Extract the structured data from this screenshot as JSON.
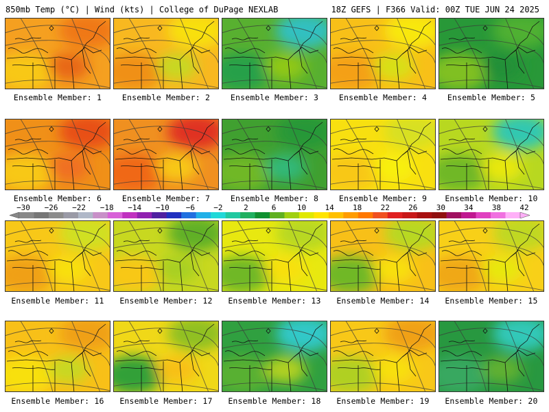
{
  "header": {
    "left_title": "850mb Temp (°C) | Wind (kts) | College of DuPage NEXLAB",
    "right_title": "18Z GEFS | F366 Valid: 00Z TUE JUN 24 2025"
  },
  "colorbar": {
    "tick_labels": [
      "−30",
      "−26",
      "−22",
      "−18",
      "−14",
      "−10",
      "−6",
      "−2",
      "2",
      "6",
      "10",
      "14",
      "18",
      "22",
      "26",
      "30",
      "34",
      "38",
      "42"
    ],
    "colors": [
      "#888888",
      "#777777",
      "#8c8c8c",
      "#9a9aa6",
      "#b0b8c8",
      "#c890c8",
      "#d860d8",
      "#c030c0",
      "#9020b0",
      "#5020a0",
      "#2030c0",
      "#2070e0",
      "#20b0e8",
      "#20d8d8",
      "#20c8a0",
      "#20b060",
      "#109030",
      "#60b020",
      "#a0d010",
      "#e0e800",
      "#ffe400",
      "#ffc000",
      "#ff9c00",
      "#ff7800",
      "#f05020",
      "#e02020",
      "#c81818",
      "#a81010",
      "#901010",
      "#a01060",
      "#c01890",
      "#e040c0",
      "#f070e0",
      "#ffb0f8"
    ]
  },
  "members": [
    {
      "label": "Ensemble Member: 1",
      "base": "#f5a020",
      "blobs": [
        "#f07818",
        "#f8c818",
        "#e86818"
      ]
    },
    {
      "label": "Ensemble Member: 2",
      "base": "#f8b820",
      "blobs": [
        "#f8e010",
        "#f09018",
        "#c8d820"
      ]
    },
    {
      "label": "Ensemble Member: 3",
      "base": "#58b030",
      "blobs": [
        "#30c0c0",
        "#28a048",
        "#90c818"
      ]
    },
    {
      "label": "Ensemble Member: 4",
      "base": "#f8c018",
      "blobs": [
        "#f8e810",
        "#f4a018",
        "#d8e018"
      ]
    },
    {
      "label": "Ensemble Member: 5",
      "base": "#289838",
      "blobs": [
        "#50b030",
        "#80c020",
        "#209038"
      ]
    },
    {
      "label": "Ensemble Member: 6",
      "base": "#f09018",
      "blobs": [
        "#e85018",
        "#f8c818",
        "#f07020"
      ]
    },
    {
      "label": "Ensemble Member: 7",
      "base": "#f09020",
      "blobs": [
        "#e03020",
        "#f06818",
        "#f8c818"
      ]
    },
    {
      "label": "Ensemble Member: 8",
      "base": "#40a030",
      "blobs": [
        "#289838",
        "#70b828",
        "#30b878"
      ]
    },
    {
      "label": "Ensemble Member: 9",
      "base": "#f8e010",
      "blobs": [
        "#d8e020",
        "#f8c818",
        "#f8f010"
      ]
    },
    {
      "label": "Ensemble Member: 10",
      "base": "#b8d820",
      "blobs": [
        "#30c8b0",
        "#70b828",
        "#e8e810"
      ]
    },
    {
      "label": "Ensemble Member: 11",
      "base": "#f8c818",
      "blobs": [
        "#d0e020",
        "#f0a018",
        "#f8e010"
      ]
    },
    {
      "label": "Ensemble Member: 12",
      "base": "#c8d820",
      "blobs": [
        "#60b028",
        "#f8c818",
        "#a8d020"
      ]
    },
    {
      "label": "Ensemble Member: 13",
      "base": "#e8e810",
      "blobs": [
        "#b8d820",
        "#70b828",
        "#f8e010"
      ]
    },
    {
      "label": "Ensemble Member: 14",
      "base": "#f8c018",
      "blobs": [
        "#b8d820",
        "#70b828",
        "#f8e010"
      ]
    },
    {
      "label": "Ensemble Member: 15",
      "base": "#f8d018",
      "blobs": [
        "#c0d820",
        "#f0a818",
        "#e8e810"
      ]
    },
    {
      "label": "Ensemble Member: 16",
      "base": "#f8c018",
      "blobs": [
        "#f0a018",
        "#f8e010",
        "#c8d820"
      ]
    },
    {
      "label": "Ensemble Member: 17",
      "base": "#f0d818",
      "blobs": [
        "#90c020",
        "#30a038",
        "#f8c018"
      ]
    },
    {
      "label": "Ensemble Member: 18",
      "base": "#30a040",
      "blobs": [
        "#30c8c8",
        "#58b030",
        "#b0d020"
      ]
    },
    {
      "label": "Ensemble Member: 19",
      "base": "#f8c818",
      "blobs": [
        "#f0a018",
        "#b0d020",
        "#f8e010"
      ]
    },
    {
      "label": "Ensemble Member: 20",
      "base": "#289840",
      "blobs": [
        "#30c8b8",
        "#38a860",
        "#60b030"
      ]
    }
  ]
}
